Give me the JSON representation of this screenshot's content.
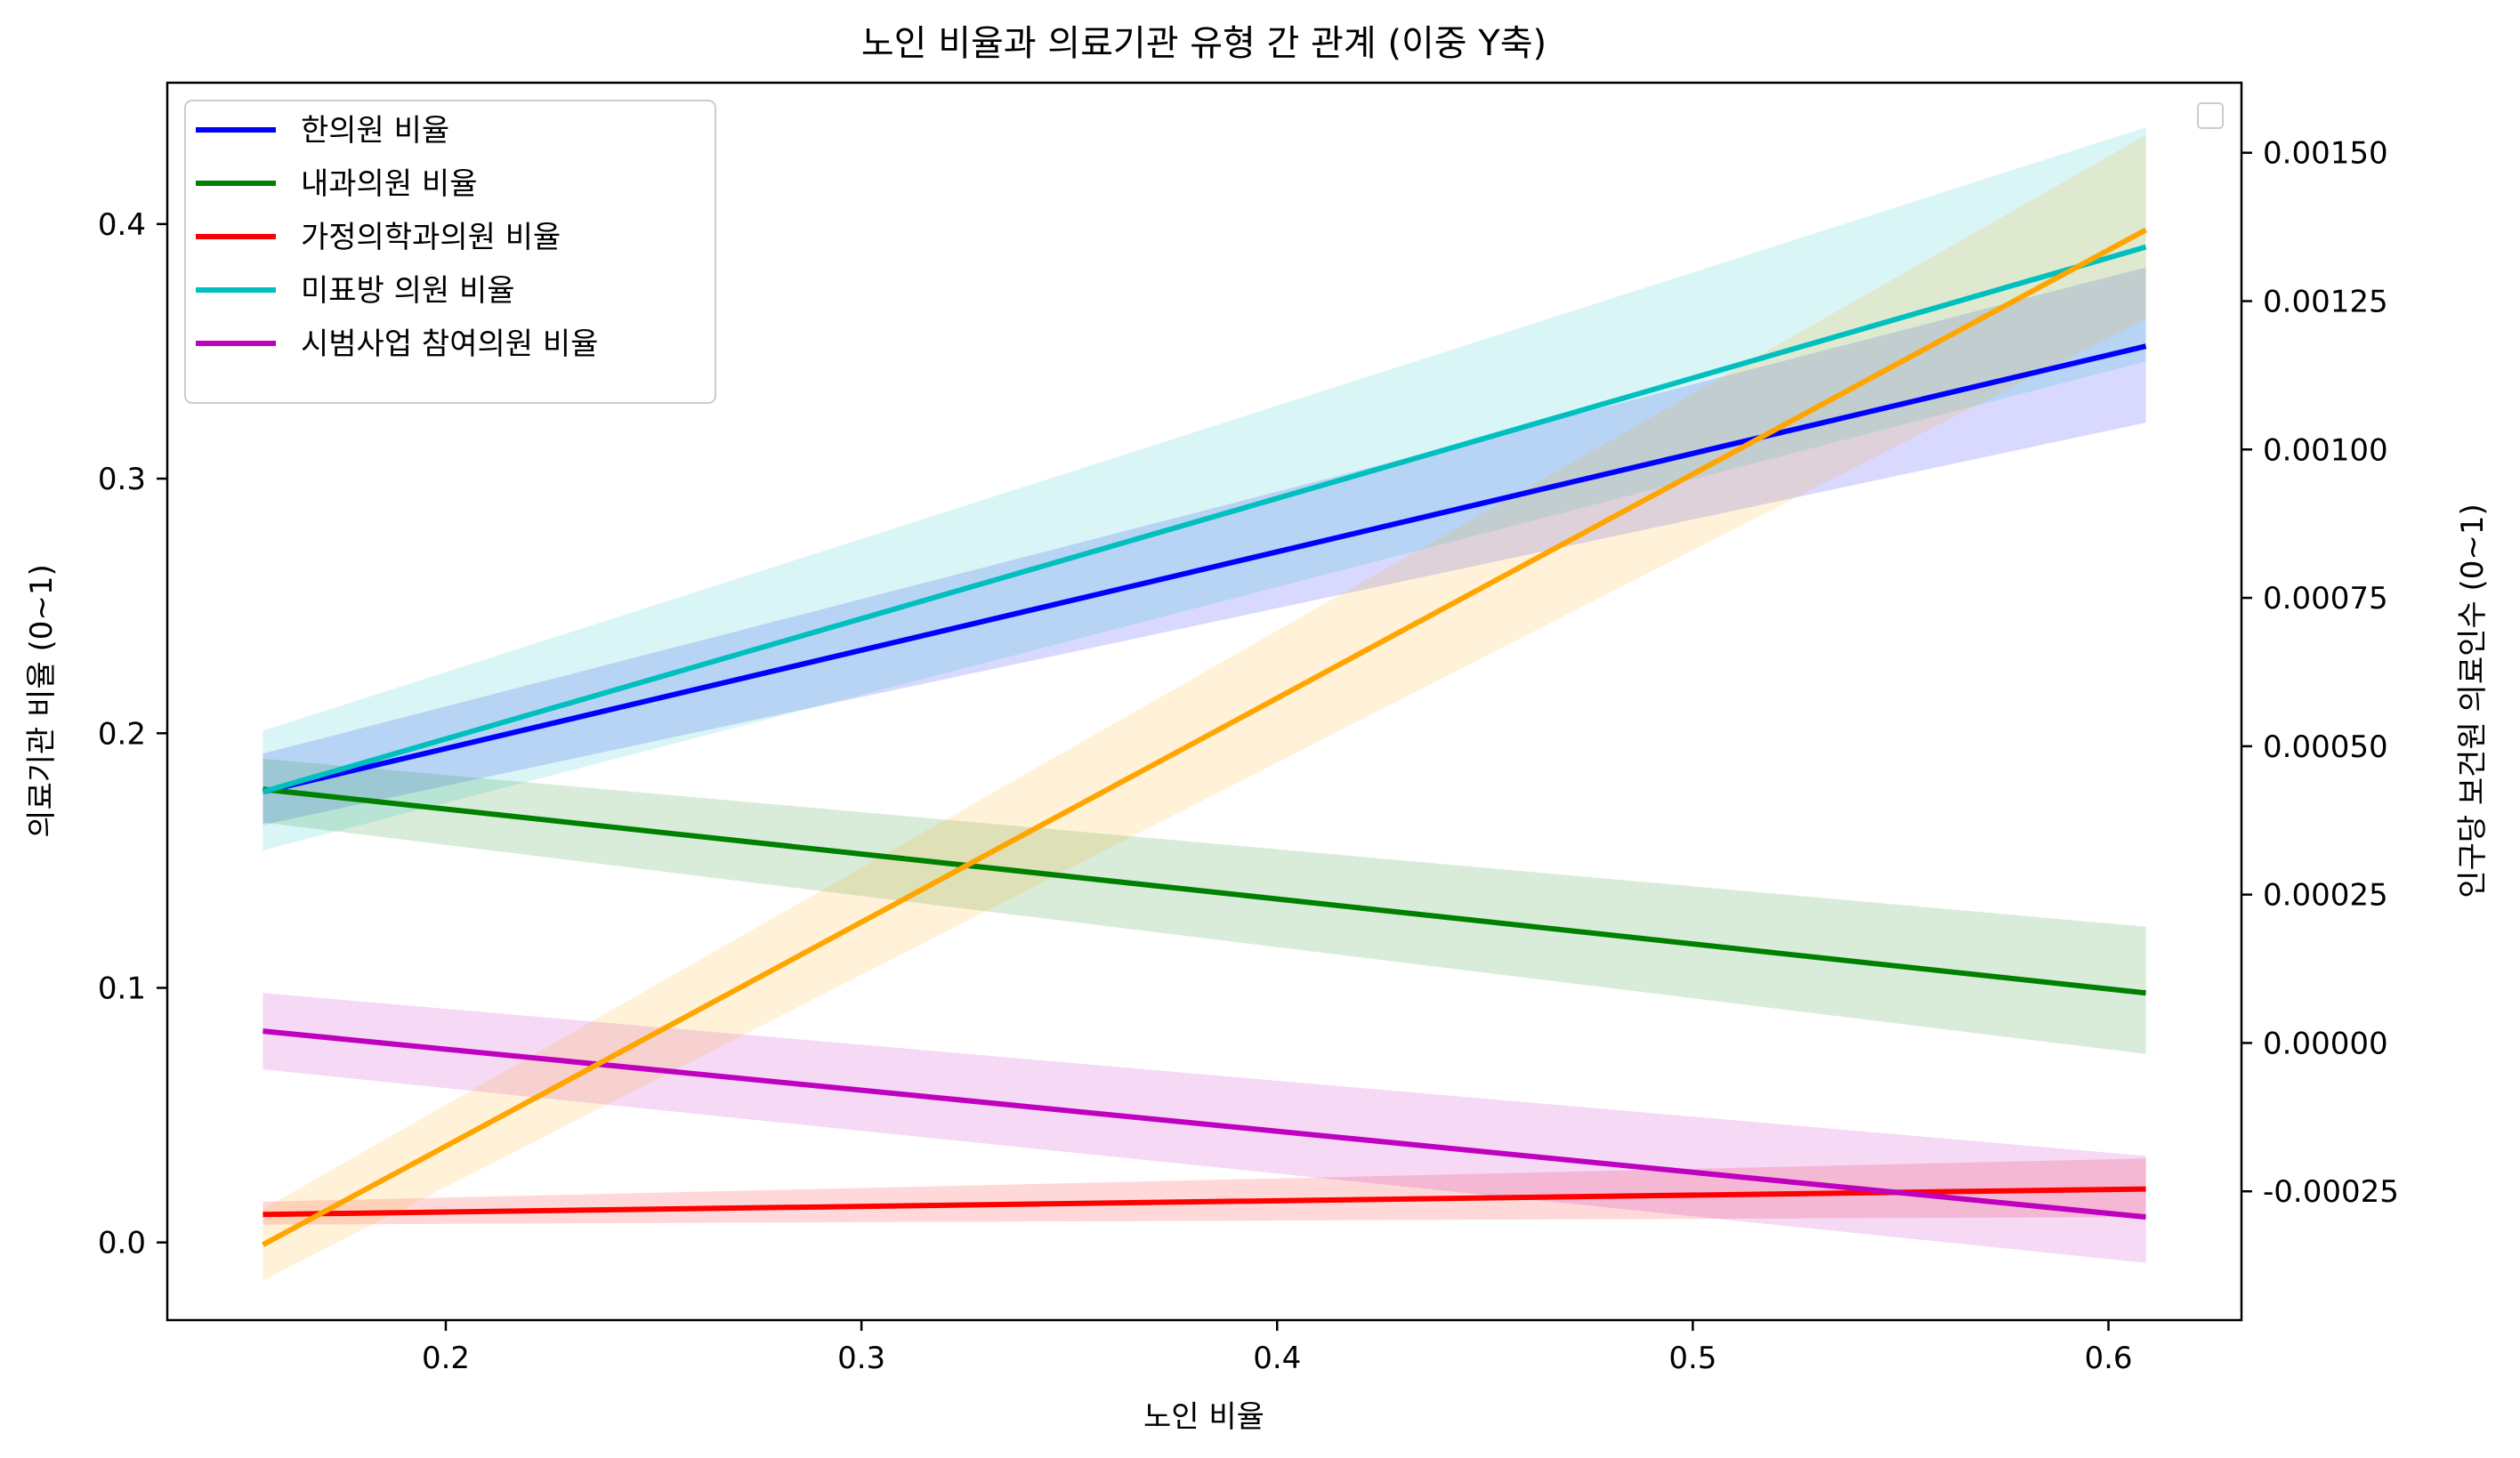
{
  "chart_data": {
    "type": "line",
    "title": "노인 비율과 의료기관 유형 간 관계 (이중 Y축)",
    "xlabel": "노인 비율",
    "ylabel": "의료기관 비율 (0~1)",
    "ylabel_right": "인구당 보건원 의료인수 (0~1)",
    "xlim": [
      0.133,
      0.632
    ],
    "ylim": [
      -0.0305,
      0.4555
    ],
    "ylim_right": [
      -0.000467,
      0.001618
    ],
    "x_ticks": [
      0.2,
      0.3,
      0.4,
      0.5,
      0.6
    ],
    "x_tick_labels": [
      "0.2",
      "0.3",
      "0.4",
      "0.5",
      "0.6"
    ],
    "y_ticks": [
      0.0,
      0.1,
      0.2,
      0.3,
      0.4
    ],
    "y_tick_labels": [
      "0.0",
      "0.1",
      "0.2",
      "0.3",
      "0.4"
    ],
    "y_right_ticks": [
      -0.00025,
      0.0,
      0.00025,
      0.0005,
      0.00075,
      0.001,
      0.00125,
      0.0015
    ],
    "y_right_tick_labels": [
      "-0.00025",
      "0.00000",
      "0.00025",
      "0.00050",
      "0.00075",
      "0.00100",
      "0.00125",
      "0.00150"
    ],
    "grid": false,
    "legend_position": "top-left",
    "series": [
      {
        "name": "한의원 비율",
        "axis": "left",
        "color": "#0000ff",
        "x": [
          0.156,
          0.609
        ],
        "y": [
          0.177,
          0.352
        ],
        "ci_lower": [
          0.164,
          0.322
        ],
        "ci_upper": [
          0.192,
          0.383
        ]
      },
      {
        "name": "내과의원 비율",
        "axis": "left",
        "color": "#008000",
        "x": [
          0.156,
          0.609
        ],
        "y": [
          0.178,
          0.098
        ],
        "ci_lower": [
          0.165,
          0.074
        ],
        "ci_upper": [
          0.19,
          0.124
        ]
      },
      {
        "name": "가정의학과의원 비율",
        "axis": "left",
        "color": "#ff0000",
        "x": [
          0.156,
          0.609
        ],
        "y": [
          0.011,
          0.021
        ],
        "ci_lower": [
          0.007,
          0.01
        ],
        "ci_upper": [
          0.016,
          0.033
        ]
      },
      {
        "name": "미표방 의원 비율",
        "axis": "left",
        "color": "#00bfbf",
        "x": [
          0.156,
          0.609
        ],
        "y": [
          0.177,
          0.391
        ],
        "ci_lower": [
          0.154,
          0.346
        ],
        "ci_upper": [
          0.201,
          0.438
        ]
      },
      {
        "name": "시범사업 참여의원 비율",
        "axis": "left",
        "color": "#bf00bf",
        "x": [
          0.156,
          0.609
        ],
        "y": [
          0.083,
          0.01
        ],
        "ci_lower": [
          0.068,
          -0.008
        ],
        "ci_upper": [
          0.098,
          0.034
        ]
      },
      {
        "axis": "right",
        "color": "#ffa500",
        "x": [
          0.156,
          0.609
        ],
        "y": [
          -0.00034,
          0.00137
        ],
        "ci_lower": [
          -0.0004,
          0.00122
        ],
        "ci_upper": [
          -0.00028,
          0.00153
        ]
      }
    ]
  }
}
